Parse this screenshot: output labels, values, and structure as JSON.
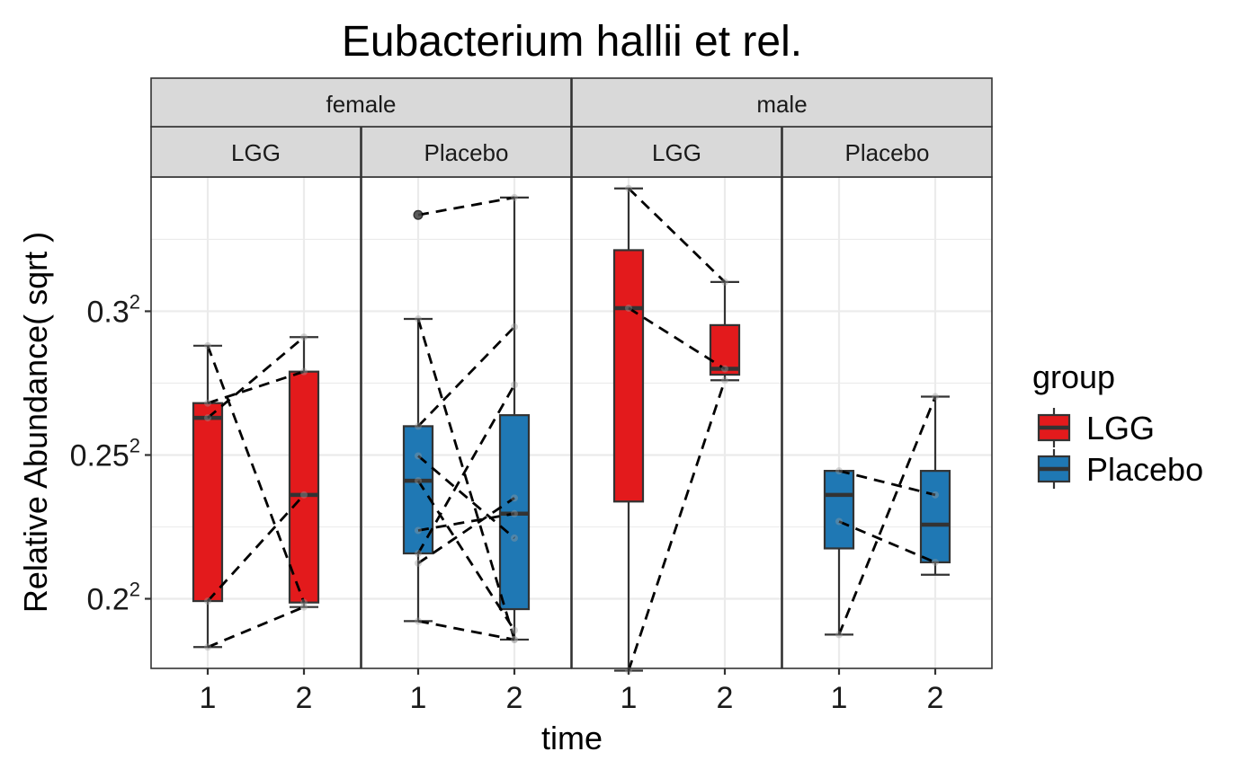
{
  "chart_data": {
    "type": "box",
    "title": "Eubacterium hallii et rel.",
    "xlabel": "time",
    "ylabel": "Relative Abundance( sqrt )",
    "y_scale": "sqrt",
    "ylim": [
      0.0309,
      0.1202
    ],
    "y_ticks": [
      {
        "value": 0.04,
        "base": "0.2",
        "exp": "2"
      },
      {
        "value": 0.0625,
        "base": "0.25",
        "exp": "2"
      },
      {
        "value": 0.09,
        "base": "0.3",
        "exp": "2"
      }
    ],
    "x_categories": [
      "1",
      "2"
    ],
    "facet_rows": [
      "female",
      "male"
    ],
    "facet_cols": [
      "LGG",
      "Placebo"
    ],
    "legend": {
      "title": "group",
      "position": "right",
      "items": [
        {
          "name": "LGG",
          "color": "#e31a1c"
        },
        {
          "name": "Placebo",
          "color": "#1f78b4"
        }
      ]
    },
    "panels": [
      {
        "sex": "female",
        "group": "LGG",
        "boxes": [
          {
            "time": "1",
            "min": 0.03356,
            "q1": 0.03968,
            "median": 0.06913,
            "q3": 0.07185,
            "max": 0.08295,
            "outliers": []
          },
          {
            "time": "2",
            "min": 0.03886,
            "q1": 0.03948,
            "median": 0.05576,
            "q3": 0.07784,
            "max": 0.08468,
            "outliers": []
          }
        ],
        "pairs": [
          [
            0.08295,
            0.03948
          ],
          [
            0.07185,
            0.07784
          ],
          [
            0.06913,
            0.08468
          ],
          [
            0.03968,
            0.05576
          ],
          [
            0.03356,
            0.03886
          ]
        ]
      },
      {
        "sex": "female",
        "group": "Placebo",
        "boxes": [
          {
            "time": "1",
            "min": 0.03695,
            "q1": 0.04656,
            "median": 0.05811,
            "q3": 0.06761,
            "max": 0.0884,
            "outliers": [
              0.11122
            ]
          },
          {
            "time": "2",
            "min": 0.03452,
            "q1": 0.03857,
            "median": 0.05271,
            "q3": 0.06962,
            "max": 0.11529,
            "outliers": []
          }
        ],
        "pairs": [
          [
            0.11122,
            0.11529
          ],
          [
            0.0884,
            0.03452
          ],
          [
            0.06761,
            0.08677
          ],
          [
            0.06235,
            0.04889
          ],
          [
            0.05811,
            0.03573
          ],
          [
            0.05007,
            0.05271
          ],
          [
            0.04656,
            0.0753
          ],
          [
            0.0451,
            0.05525
          ],
          [
            0.03695,
            0.03452
          ]
        ]
      },
      {
        "sex": "male",
        "group": "LGG",
        "boxes": [
          {
            "time": "1",
            "min": 0.03063,
            "q1": 0.05467,
            "median": 0.09066,
            "q3": 0.1032,
            "max": 0.11745,
            "outliers": []
          },
          {
            "time": "2",
            "min": 0.07618,
            "q1": 0.07725,
            "median": 0.07839,
            "q3": 0.08713,
            "max": 0.09621,
            "outliers": []
          }
        ],
        "pairs": [
          [
            0.11745,
            0.09621
          ],
          [
            0.09066,
            0.07839
          ],
          [
            0.03063,
            0.07618
          ]
        ]
      },
      {
        "sex": "male",
        "group": "Placebo",
        "boxes": [
          {
            "time": "1",
            "min": 0.03517,
            "q1": 0.04731,
            "median": 0.05576,
            "q3": 0.05977,
            "max": 0.05977,
            "outliers": []
          },
          {
            "time": "2",
            "min": 0.04341,
            "q1": 0.04523,
            "median": 0.05097,
            "q3": 0.05977,
            "max": 0.07306,
            "outliers": []
          }
        ],
        "pairs": [
          [
            0.05977,
            0.05576
          ],
          [
            0.05147,
            0.04523
          ],
          [
            0.03517,
            0.07306
          ]
        ]
      }
    ]
  }
}
